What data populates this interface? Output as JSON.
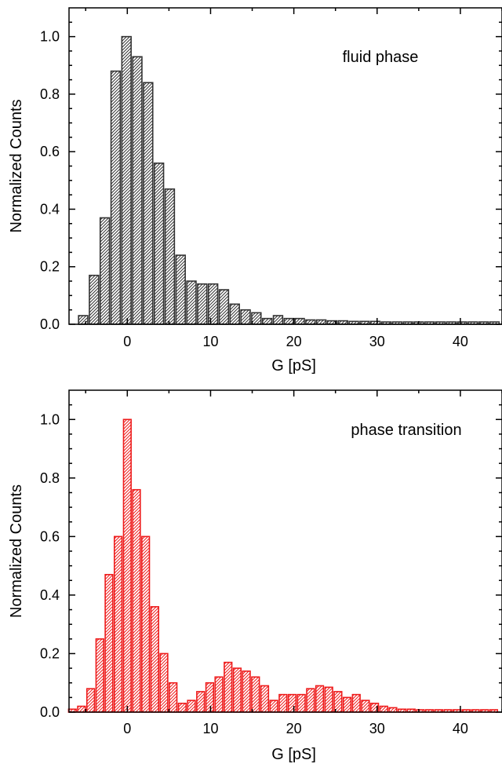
{
  "chart_data": [
    {
      "type": "bar",
      "annotation": "fluid phase",
      "xlabel": "G [pS]",
      "ylabel": "Normalized Counts",
      "xlim": [
        -7,
        45
      ],
      "ylim": [
        0,
        1.1
      ],
      "xticks": [
        0,
        10,
        20,
        30,
        40
      ],
      "yticks": [
        0.0,
        0.2,
        0.4,
        0.6,
        0.8,
        1.0
      ],
      "ytick_labels": [
        "0.0",
        "0.2",
        "0.4",
        "0.6",
        "0.8",
        "1.0"
      ],
      "bin_width": 1.3,
      "color": "#333333",
      "x": [
        -5.3,
        -4.0,
        -2.7,
        -1.4,
        -0.1,
        1.2,
        2.5,
        3.8,
        5.1,
        6.4,
        7.7,
        9.0,
        10.3,
        11.6,
        12.9,
        14.2,
        15.5,
        16.8,
        18.1,
        19.4,
        20.7,
        22.0,
        23.3,
        24.6,
        25.9,
        27.2,
        28.5,
        29.8,
        31.1,
        32.4,
        33.7,
        35.0,
        36.3,
        37.6,
        38.9,
        40.2,
        41.5,
        42.8,
        44.1
      ],
      "values": [
        0.03,
        0.17,
        0.37,
        0.88,
        1.0,
        0.93,
        0.84,
        0.56,
        0.47,
        0.24,
        0.15,
        0.14,
        0.14,
        0.12,
        0.07,
        0.05,
        0.04,
        0.02,
        0.03,
        0.02,
        0.02,
        0.015,
        0.015,
        0.012,
        0.012,
        0.01,
        0.01,
        0.01,
        0.008,
        0.008,
        0.008,
        0.008,
        0.008,
        0.008,
        0.008,
        0.008,
        0.008,
        0.008,
        0.008
      ]
    },
    {
      "type": "bar",
      "annotation": "phase transition",
      "xlabel": "G [pS]",
      "ylabel": "Normalized Counts",
      "xlim": [
        -7,
        45
      ],
      "ylim": [
        0,
        1.1
      ],
      "xticks": [
        0,
        10,
        20,
        30,
        40
      ],
      "yticks": [
        0.0,
        0.2,
        0.4,
        0.6,
        0.8,
        1.0
      ],
      "ytick_labels": [
        "0.0",
        "0.2",
        "0.4",
        "0.6",
        "0.8",
        "1.0"
      ],
      "bin_width": 1.1,
      "color": "#ee1c1c",
      "x": [
        -6.6,
        -5.5,
        -4.4,
        -3.3,
        -2.2,
        -1.1,
        0.0,
        1.1,
        2.2,
        3.3,
        4.4,
        5.5,
        6.6,
        7.7,
        8.8,
        9.9,
        11.0,
        12.1,
        13.2,
        14.3,
        15.4,
        16.5,
        17.6,
        18.7,
        19.8,
        20.9,
        22.0,
        23.1,
        24.2,
        25.3,
        26.4,
        27.5,
        28.6,
        29.7,
        30.8,
        31.9,
        33.0,
        34.1,
        35.2,
        36.3,
        37.4,
        38.5,
        39.6,
        40.7,
        41.8,
        42.9,
        44.0
      ],
      "values": [
        0.01,
        0.02,
        0.08,
        0.25,
        0.47,
        0.6,
        1.0,
        0.76,
        0.6,
        0.36,
        0.2,
        0.1,
        0.03,
        0.04,
        0.07,
        0.1,
        0.12,
        0.17,
        0.15,
        0.14,
        0.12,
        0.09,
        0.04,
        0.06,
        0.06,
        0.06,
        0.08,
        0.09,
        0.085,
        0.07,
        0.05,
        0.06,
        0.04,
        0.03,
        0.02,
        0.015,
        0.01,
        0.01,
        0.008,
        0.008,
        0.008,
        0.008,
        0.008,
        0.008,
        0.008,
        0.008,
        0.008
      ]
    }
  ]
}
